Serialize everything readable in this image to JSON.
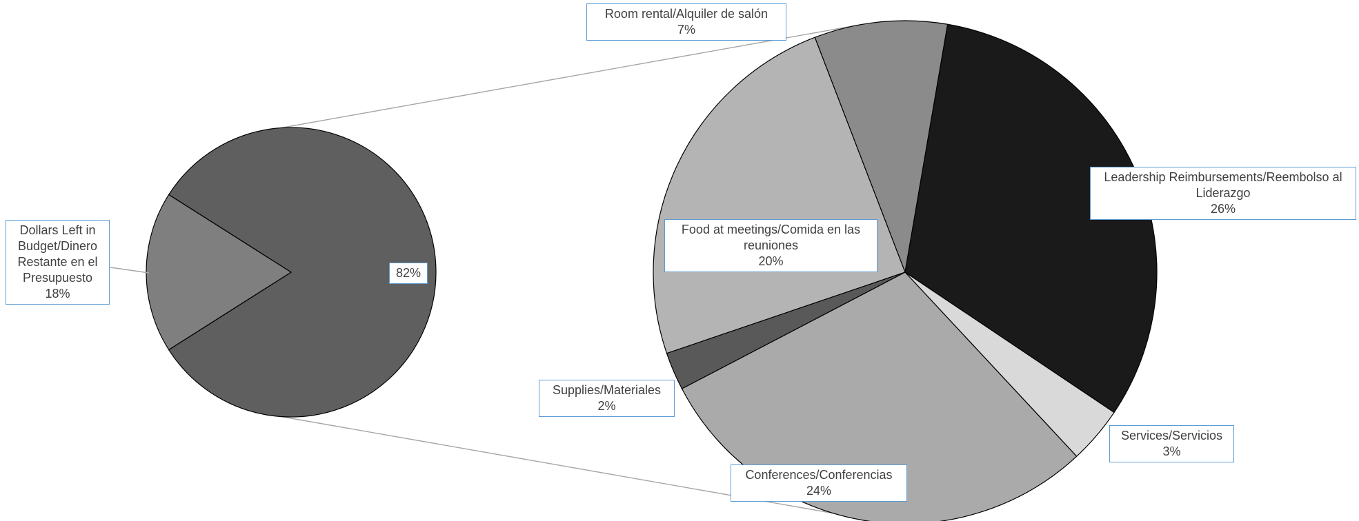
{
  "chart_data": {
    "type": "pie",
    "subtype": "pie-of-pie",
    "title": "",
    "colors": {
      "edge": "#000000",
      "connector": "#a6a6a6",
      "label_border": "#5b9bd5",
      "label_text": "#404040"
    },
    "main_pie": {
      "slices": [
        {
          "label": "",
          "value": 82,
          "value_text": "82%",
          "color": "#5f5f5f"
        },
        {
          "label": "Dollars Left in Budget/Dinero Restante en el Presupuesto",
          "value": 18,
          "value_text": "18%",
          "color": "#7f7f7f"
        }
      ]
    },
    "breakdown_pie": {
      "slices": [
        {
          "label": "Room rental/Alquiler de salón",
          "value": 7,
          "value_text": "7%",
          "color": "#8b8b8b"
        },
        {
          "label": "Leadership Reimbursements/Reembolso al Liderazgo",
          "value": 26,
          "value_text": "26%",
          "color": "#1a1a1a"
        },
        {
          "label": "Services/Servicios",
          "value": 3,
          "value_text": "3%",
          "color": "#d9d9d9"
        },
        {
          "label": "Conferences/Conferencias",
          "value": 24,
          "value_text": "24%",
          "color": "#aaaaaa"
        },
        {
          "label": "Supplies/Materiales",
          "value": 2,
          "value_text": "2%",
          "color": "#595959"
        },
        {
          "label": "Food at meetings/Comida en las reuniones",
          "value": 20,
          "value_text": "20%",
          "color": "#b4b4b4"
        }
      ]
    }
  }
}
